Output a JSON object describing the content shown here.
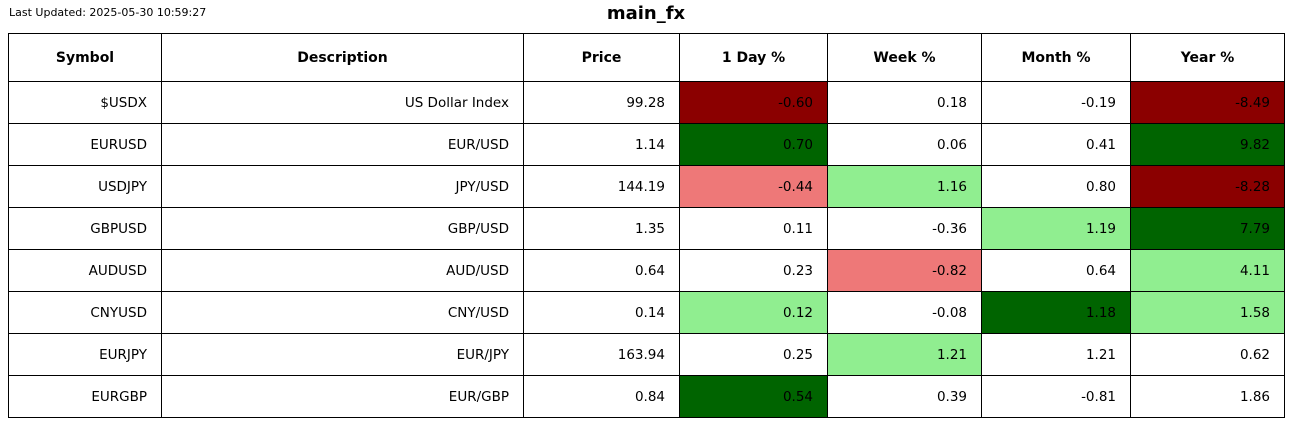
{
  "meta": {
    "last_updated": "Last Updated: 2025-05-30 10:59:27",
    "title": "main_fx"
  },
  "colors": {
    "darkred": "#8b0000",
    "darkgreen": "#006400",
    "lightred": "#ee7878",
    "lightgreen": "#90ee90",
    "white": "#ffffff"
  },
  "table": {
    "columns": [
      "Symbol",
      "Description",
      "Price",
      "1 Day %",
      "Week %",
      "Month %",
      "Year %"
    ],
    "rows": [
      {
        "symbol": "$USDX",
        "description": "US Dollar Index",
        "price": "99.28",
        "changes": [
          {
            "period": "1 Day %",
            "value": "-0.60",
            "color": "darkred"
          },
          {
            "period": "Week %",
            "value": "0.18",
            "color": "white"
          },
          {
            "period": "Month %",
            "value": "-0.19",
            "color": "white"
          },
          {
            "period": "Year %",
            "value": "-8.49",
            "color": "darkred"
          }
        ]
      },
      {
        "symbol": "EURUSD",
        "description": "EUR/USD",
        "price": "1.14",
        "changes": [
          {
            "period": "1 Day %",
            "value": "0.70",
            "color": "darkgreen"
          },
          {
            "period": "Week %",
            "value": "0.06",
            "color": "white"
          },
          {
            "period": "Month %",
            "value": "0.41",
            "color": "white"
          },
          {
            "period": "Year %",
            "value": "9.82",
            "color": "darkgreen"
          }
        ]
      },
      {
        "symbol": "USDJPY",
        "description": "JPY/USD",
        "price": "144.19",
        "changes": [
          {
            "period": "1 Day %",
            "value": "-0.44",
            "color": "lightred"
          },
          {
            "period": "Week %",
            "value": "1.16",
            "color": "lightgreen"
          },
          {
            "period": "Month %",
            "value": "0.80",
            "color": "white"
          },
          {
            "period": "Year %",
            "value": "-8.28",
            "color": "darkred"
          }
        ]
      },
      {
        "symbol": "GBPUSD",
        "description": "GBP/USD",
        "price": "1.35",
        "changes": [
          {
            "period": "1 Day %",
            "value": "0.11",
            "color": "white"
          },
          {
            "period": "Week %",
            "value": "-0.36",
            "color": "white"
          },
          {
            "period": "Month %",
            "value": "1.19",
            "color": "lightgreen"
          },
          {
            "period": "Year %",
            "value": "7.79",
            "color": "darkgreen"
          }
        ]
      },
      {
        "symbol": "AUDUSD",
        "description": "AUD/USD",
        "price": "0.64",
        "changes": [
          {
            "period": "1 Day %",
            "value": "0.23",
            "color": "white"
          },
          {
            "period": "Week %",
            "value": "-0.82",
            "color": "lightred"
          },
          {
            "period": "Month %",
            "value": "0.64",
            "color": "white"
          },
          {
            "period": "Year %",
            "value": "4.11",
            "color": "lightgreen"
          }
        ]
      },
      {
        "symbol": "CNYUSD",
        "description": "CNY/USD",
        "price": "0.14",
        "changes": [
          {
            "period": "1 Day %",
            "value": "0.12",
            "color": "lightgreen"
          },
          {
            "period": "Week %",
            "value": "-0.08",
            "color": "white"
          },
          {
            "period": "Month %",
            "value": "1.18",
            "color": "darkgreen"
          },
          {
            "period": "Year %",
            "value": "1.58",
            "color": "lightgreen"
          }
        ]
      },
      {
        "symbol": "EURJPY",
        "description": "EUR/JPY",
        "price": "163.94",
        "changes": [
          {
            "period": "1 Day %",
            "value": "0.25",
            "color": "white"
          },
          {
            "period": "Week %",
            "value": "1.21",
            "color": "lightgreen"
          },
          {
            "period": "Month %",
            "value": "1.21",
            "color": "white"
          },
          {
            "period": "Year %",
            "value": "0.62",
            "color": "white"
          }
        ]
      },
      {
        "symbol": "EURGBP",
        "description": "EUR/GBP",
        "price": "0.84",
        "changes": [
          {
            "period": "1 Day %",
            "value": "0.54",
            "color": "darkgreen"
          },
          {
            "period": "Week %",
            "value": "0.39",
            "color": "white"
          },
          {
            "period": "Month %",
            "value": "-0.81",
            "color": "white"
          },
          {
            "period": "Year %",
            "value": "1.86",
            "color": "white"
          }
        ]
      }
    ]
  }
}
